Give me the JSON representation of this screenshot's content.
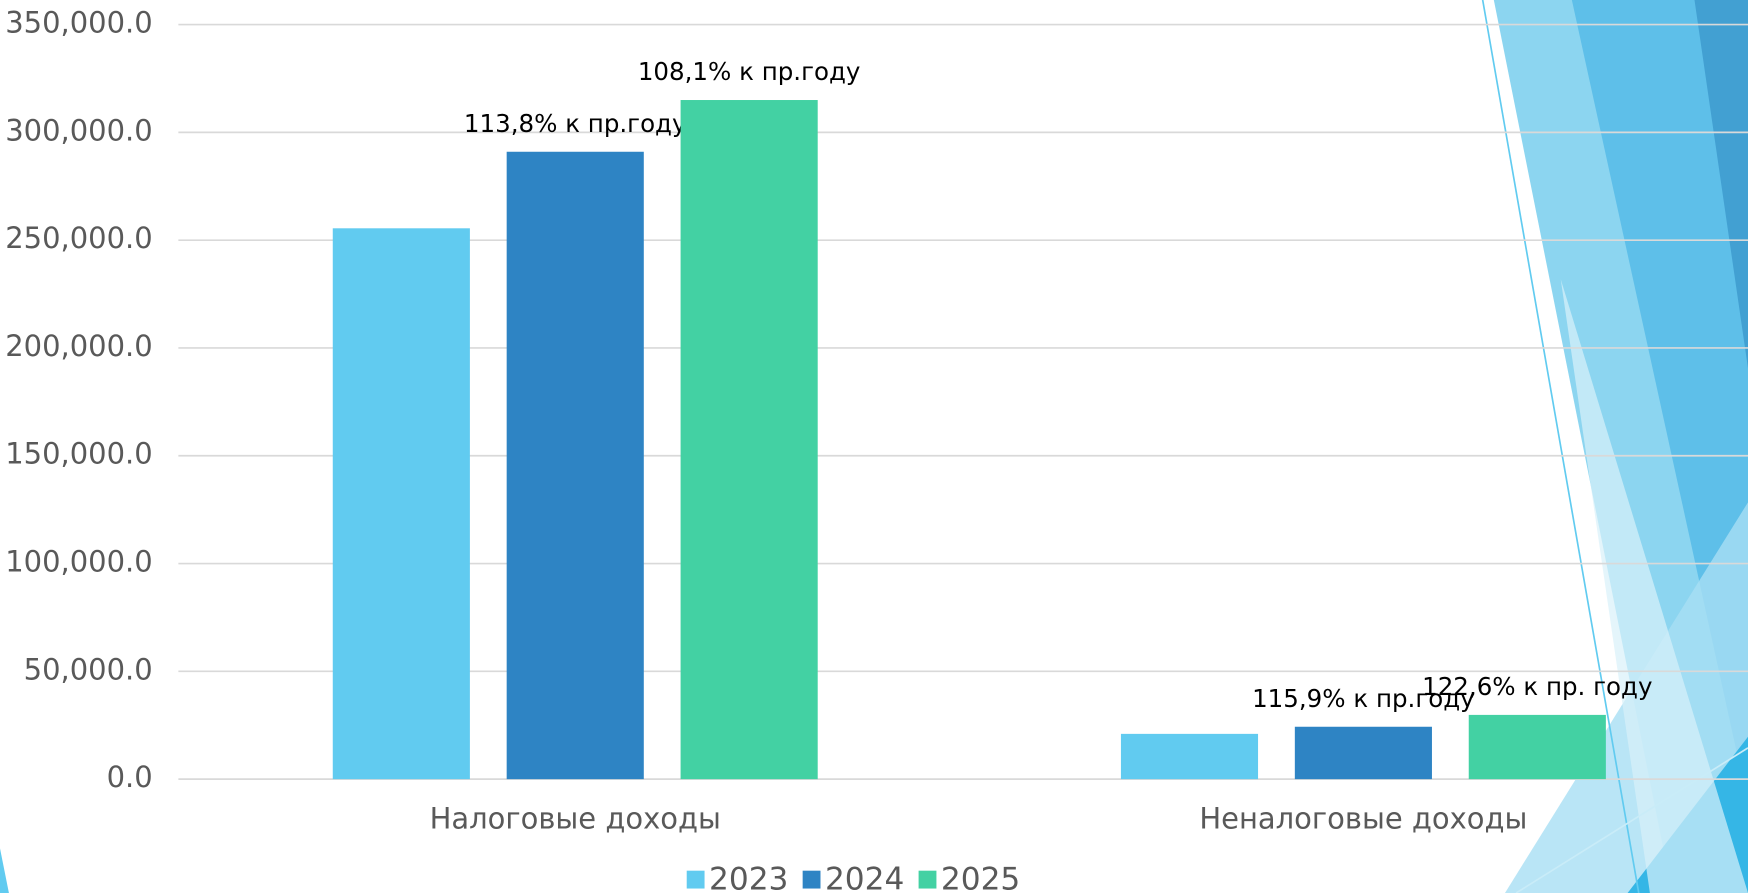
{
  "chart_data": {
    "type": "bar",
    "categories": [
      "Налоговые доходы",
      "Неналоговые доходы"
    ],
    "series": [
      {
        "name": "2023",
        "color": "#61cbf0",
        "values": [
          255500,
          21000
        ]
      },
      {
        "name": "2024",
        "color": "#2e84c4",
        "values": [
          291000,
          24300
        ],
        "point_labels": [
          "113,8% к пр.году",
          "115,9% к пр.году"
        ]
      },
      {
        "name": "2025",
        "color": "#43d1a3",
        "values": [
          315000,
          29800
        ],
        "point_labels": [
          "108,1% к пр.году",
          "122,6% к пр. году"
        ]
      }
    ],
    "ylim": [
      0,
      350000
    ],
    "yticks": [
      {
        "value": 0,
        "label": "0.0"
      },
      {
        "value": 50000,
        "label": "50,000.0"
      },
      {
        "value": 100000,
        "label": "100,000.0"
      },
      {
        "value": 150000,
        "label": "150,000.0"
      },
      {
        "value": 200000,
        "label": "200,000.0"
      },
      {
        "value": 250000,
        "label": "250,000.0"
      },
      {
        "value": 300000,
        "label": "300,000.0"
      },
      {
        "value": 350000,
        "label": "350,000.0"
      }
    ],
    "grid": true,
    "legend": "bottom"
  }
}
